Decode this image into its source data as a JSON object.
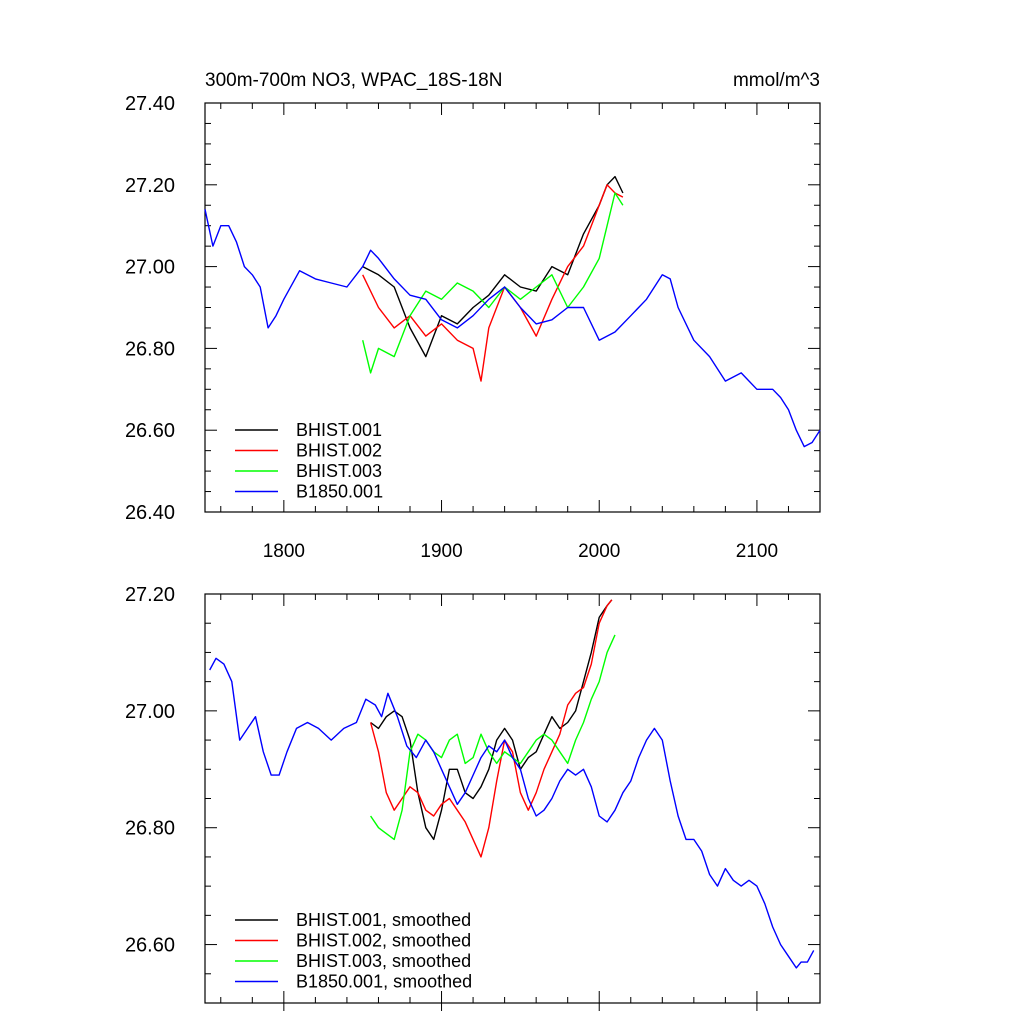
{
  "chart_data": [
    {
      "type": "line",
      "title": "300m-700m NO3, WPAC_18S-18N",
      "units": "mmol/m^3",
      "xlim": [
        1750,
        2140
      ],
      "ylim": [
        26.4,
        27.4
      ],
      "xticks": [
        "1800",
        "1900",
        "2000",
        "2100"
      ],
      "yticks": [
        "26.40",
        "26.60",
        "26.80",
        "27.00",
        "27.20",
        "27.40"
      ],
      "legend_position": "bottom-left",
      "series": [
        {
          "name": "BHIST.001",
          "color": "#000000",
          "x": [
            1850,
            1860,
            1870,
            1880,
            1890,
            1900,
            1910,
            1920,
            1930,
            1940,
            1950,
            1960,
            1970,
            1980,
            1990,
            2000,
            2005,
            2010,
            2015
          ],
          "y": [
            27.0,
            26.98,
            26.95,
            26.85,
            26.78,
            26.88,
            26.86,
            26.9,
            26.93,
            26.98,
            26.95,
            26.94,
            27.0,
            26.98,
            27.08,
            27.15,
            27.2,
            27.22,
            27.18
          ]
        },
        {
          "name": "BHIST.002",
          "color": "#ff0000",
          "x": [
            1850,
            1860,
            1870,
            1880,
            1890,
            1900,
            1910,
            1920,
            1925,
            1930,
            1940,
            1950,
            1960,
            1970,
            1980,
            1990,
            2000,
            2005,
            2010,
            2015
          ],
          "y": [
            26.98,
            26.9,
            26.85,
            26.88,
            26.83,
            26.86,
            26.82,
            26.8,
            26.72,
            26.85,
            26.95,
            26.9,
            26.83,
            26.92,
            27.0,
            27.05,
            27.15,
            27.2,
            27.18,
            27.17
          ]
        },
        {
          "name": "BHIST.003",
          "color": "#00ff00",
          "x": [
            1850,
            1855,
            1860,
            1870,
            1880,
            1890,
            1900,
            1910,
            1920,
            1930,
            1940,
            1950,
            1960,
            1970,
            1980,
            1990,
            2000,
            2005,
            2010,
            2015
          ],
          "y": [
            26.82,
            26.74,
            26.8,
            26.78,
            26.88,
            26.94,
            26.92,
            26.96,
            26.94,
            26.9,
            26.95,
            26.92,
            26.95,
            26.98,
            26.9,
            26.95,
            27.02,
            27.1,
            27.18,
            27.15
          ]
        },
        {
          "name": "B1850.001",
          "color": "#0000ff",
          "x": [
            1750,
            1755,
            1760,
            1765,
            1770,
            1775,
            1780,
            1785,
            1790,
            1795,
            1800,
            1810,
            1820,
            1830,
            1840,
            1850,
            1855,
            1860,
            1870,
            1880,
            1890,
            1900,
            1910,
            1920,
            1930,
            1940,
            1950,
            1960,
            1970,
            1980,
            1990,
            2000,
            2010,
            2020,
            2030,
            2040,
            2045,
            2050,
            2060,
            2070,
            2080,
            2090,
            2100,
            2110,
            2115,
            2120,
            2125,
            2130,
            2135,
            2140
          ],
          "y": [
            27.14,
            27.05,
            27.1,
            27.1,
            27.06,
            27.0,
            26.98,
            26.95,
            26.85,
            26.88,
            26.92,
            26.99,
            26.97,
            26.96,
            26.95,
            27.0,
            27.04,
            27.02,
            26.97,
            26.93,
            26.92,
            26.87,
            26.85,
            26.88,
            26.92,
            26.95,
            26.9,
            26.86,
            26.87,
            26.9,
            26.9,
            26.82,
            26.84,
            26.88,
            26.92,
            26.98,
            26.97,
            26.9,
            26.82,
            26.78,
            26.72,
            26.74,
            26.7,
            26.7,
            26.68,
            26.65,
            26.6,
            26.56,
            26.57,
            26.6
          ]
        }
      ]
    },
    {
      "type": "line",
      "title": "",
      "xlim": [
        1750,
        2140
      ],
      "ylim": [
        26.5,
        27.2
      ],
      "yticks": [
        "26.60",
        "26.80",
        "27.00",
        "27.20"
      ],
      "legend_position": "bottom-left",
      "series": [
        {
          "name": "BHIST.001, smoothed",
          "color": "#000000",
          "x": [
            1855,
            1860,
            1865,
            1870,
            1875,
            1880,
            1885,
            1890,
            1895,
            1900,
            1905,
            1910,
            1915,
            1920,
            1925,
            1930,
            1935,
            1940,
            1945,
            1950,
            1955,
            1960,
            1965,
            1970,
            1975,
            1980,
            1985,
            1990,
            1995,
            2000,
            2005,
            2008
          ],
          "y": [
            26.98,
            26.97,
            26.99,
            27.0,
            26.99,
            26.95,
            26.86,
            26.8,
            26.78,
            26.83,
            26.9,
            26.9,
            26.86,
            26.85,
            26.87,
            26.9,
            26.95,
            26.97,
            26.95,
            26.9,
            26.92,
            26.93,
            26.96,
            26.99,
            26.97,
            26.98,
            27.0,
            27.05,
            27.1,
            27.16,
            27.18,
            27.19
          ]
        },
        {
          "name": "BHIST.002, smoothed",
          "color": "#ff0000",
          "x": [
            1855,
            1860,
            1865,
            1870,
            1875,
            1880,
            1885,
            1890,
            1895,
            1900,
            1905,
            1910,
            1915,
            1920,
            1925,
            1930,
            1935,
            1940,
            1945,
            1950,
            1955,
            1960,
            1965,
            1970,
            1975,
            1980,
            1985,
            1990,
            1995,
            2000,
            2005,
            2008
          ],
          "y": [
            26.98,
            26.93,
            26.86,
            26.83,
            26.85,
            26.87,
            26.86,
            26.83,
            26.82,
            26.84,
            26.85,
            26.83,
            26.81,
            26.78,
            26.75,
            26.8,
            26.88,
            26.95,
            26.93,
            26.86,
            26.83,
            26.86,
            26.9,
            26.93,
            26.96,
            27.01,
            27.03,
            27.04,
            27.08,
            27.15,
            27.18,
            27.19
          ]
        },
        {
          "name": "BHIST.003, smoothed",
          "color": "#00ff00",
          "x": [
            1855,
            1860,
            1865,
            1870,
            1875,
            1880,
            1885,
            1890,
            1895,
            1900,
            1905,
            1910,
            1915,
            1920,
            1925,
            1930,
            1935,
            1940,
            1945,
            1950,
            1955,
            1960,
            1965,
            1970,
            1975,
            1980,
            1985,
            1990,
            1995,
            2000,
            2005,
            2010
          ],
          "y": [
            26.82,
            26.8,
            26.79,
            26.78,
            26.83,
            26.93,
            26.96,
            26.95,
            26.93,
            26.92,
            26.95,
            26.96,
            26.91,
            26.92,
            26.96,
            26.93,
            26.91,
            26.93,
            26.92,
            26.91,
            26.93,
            26.95,
            26.96,
            26.95,
            26.93,
            26.91,
            26.95,
            26.98,
            27.02,
            27.05,
            27.1,
            27.13
          ]
        },
        {
          "name": "B1850.001, smoothed",
          "color": "#0000ff",
          "x": [
            1753,
            1757,
            1762,
            1767,
            1772,
            1777,
            1782,
            1787,
            1792,
            1797,
            1802,
            1808,
            1815,
            1822,
            1830,
            1838,
            1846,
            1852,
            1858,
            1862,
            1866,
            1872,
            1878,
            1884,
            1890,
            1895,
            1900,
            1905,
            1910,
            1915,
            1920,
            1925,
            1930,
            1935,
            1940,
            1945,
            1950,
            1955,
            1960,
            1965,
            1970,
            1975,
            1980,
            1985,
            1990,
            1995,
            2000,
            2005,
            2010,
            2015,
            2020,
            2025,
            2030,
            2035,
            2040,
            2045,
            2050,
            2055,
            2060,
            2065,
            2070,
            2075,
            2080,
            2085,
            2090,
            2095,
            2100,
            2105,
            2110,
            2115,
            2120,
            2125,
            2128,
            2132,
            2136
          ],
          "y": [
            27.07,
            27.09,
            27.08,
            27.05,
            26.95,
            26.97,
            26.99,
            26.93,
            26.89,
            26.89,
            26.93,
            26.97,
            26.98,
            26.97,
            26.95,
            26.97,
            26.98,
            27.02,
            27.01,
            26.99,
            27.03,
            26.99,
            26.94,
            26.92,
            26.95,
            26.93,
            26.9,
            26.87,
            26.84,
            26.86,
            26.89,
            26.92,
            26.94,
            26.93,
            26.95,
            26.92,
            26.9,
            26.85,
            26.82,
            26.83,
            26.85,
            26.88,
            26.9,
            26.89,
            26.9,
            26.87,
            26.82,
            26.81,
            26.83,
            26.86,
            26.88,
            26.92,
            26.95,
            26.97,
            26.95,
            26.88,
            26.82,
            26.78,
            26.78,
            26.76,
            26.72,
            26.7,
            26.73,
            26.71,
            26.7,
            26.71,
            26.7,
            26.67,
            26.63,
            26.6,
            26.58,
            26.56,
            26.57,
            26.57,
            26.59
          ]
        }
      ]
    }
  ]
}
